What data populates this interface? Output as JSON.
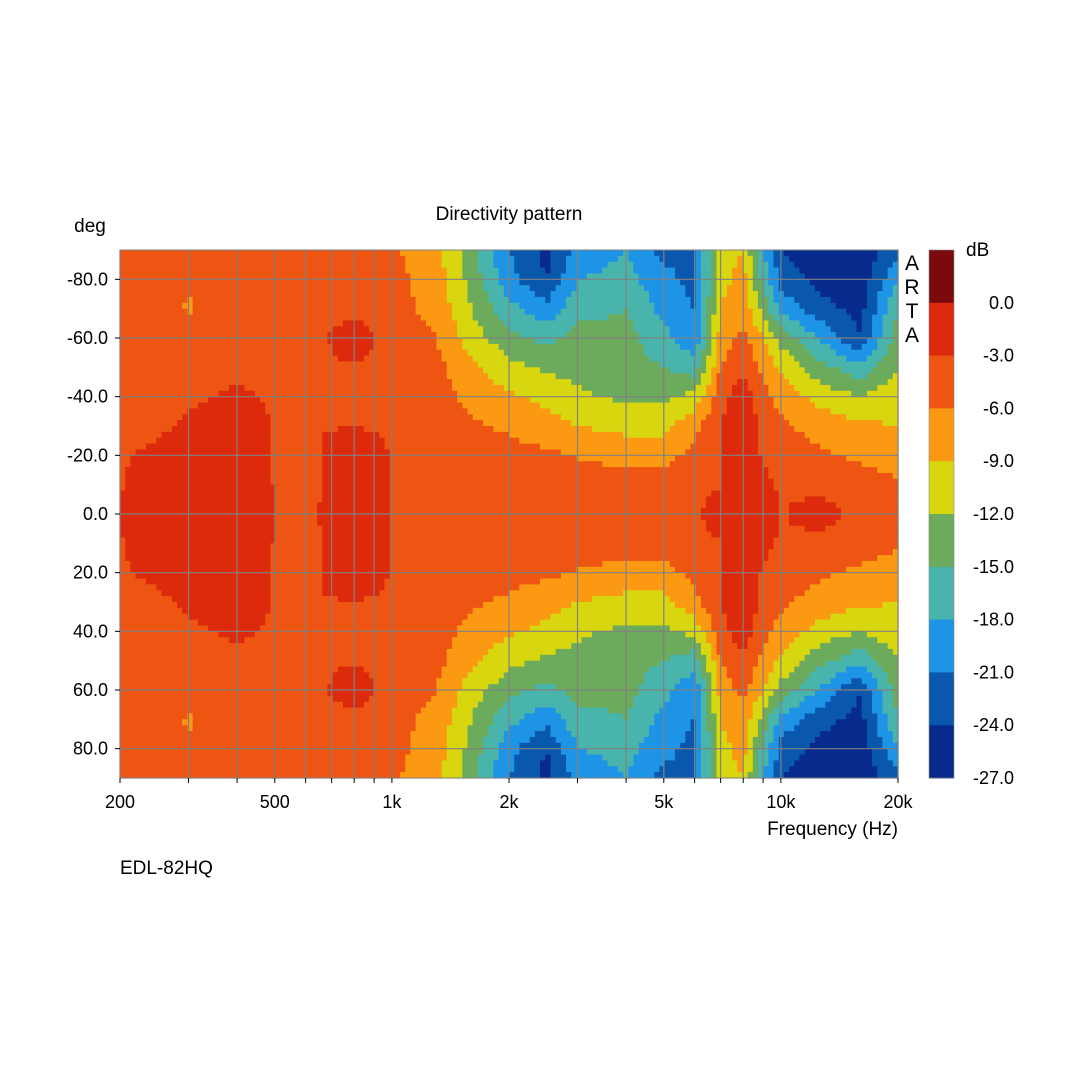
{
  "chart_data": {
    "type": "heatmap",
    "title": "Directivity pattern",
    "xlabel": "Frequency (Hz)",
    "ylabel": "deg",
    "x_scale": "log",
    "xlim": [
      200,
      20000
    ],
    "ylim": [
      -90,
      90
    ],
    "y_inverted": true,
    "x_ticks": [
      200,
      300,
      400,
      500,
      600,
      700,
      800,
      900,
      1000,
      2000,
      3000,
      4000,
      5000,
      6000,
      7000,
      8000,
      9000,
      10000,
      20000
    ],
    "x_tick_labels": [
      {
        "value": 200,
        "label": "200"
      },
      {
        "value": 500,
        "label": "500"
      },
      {
        "value": 1000,
        "label": "1k"
      },
      {
        "value": 2000,
        "label": "2k"
      },
      {
        "value": 5000,
        "label": "5k"
      },
      {
        "value": 10000,
        "label": "10k"
      },
      {
        "value": 20000,
        "label": "20k"
      }
    ],
    "y_ticks": [
      {
        "value": -80,
        "label": "-80.0"
      },
      {
        "value": -60,
        "label": "-60.0"
      },
      {
        "value": -40,
        "label": "-40.0"
      },
      {
        "value": -20,
        "label": "-20.0"
      },
      {
        "value": 0,
        "label": "0.0"
      },
      {
        "value": 20,
        "label": "20.0"
      },
      {
        "value": 40,
        "label": "40.0"
      },
      {
        "value": 60,
        "label": "60.0"
      },
      {
        "value": 80,
        "label": "80.0"
      }
    ],
    "colorbar": {
      "unit": "dB",
      "tick_labels": [
        "0.0",
        "-3.0",
        "-6.0",
        "-9.0",
        "-12.0",
        "-15.0",
        "-18.0",
        "-21.0",
        "-24.0",
        "-27.0"
      ],
      "levels": [
        {
          "min": 0,
          "color": "#7a0a0e"
        },
        {
          "min": -3,
          "color": "#dd2a0c"
        },
        {
          "min": -6,
          "color": "#ee5512"
        },
        {
          "min": -9,
          "color": "#fb9a12"
        },
        {
          "min": -12,
          "color": "#d8d60e"
        },
        {
          "min": -15,
          "color": "#6caa5c"
        },
        {
          "min": -18,
          "color": "#48b4ac"
        },
        {
          "min": -21,
          "color": "#1e94e6"
        },
        {
          "min": -24,
          "color": "#0a58ae"
        },
        {
          "min": -27,
          "color": "#082a8c"
        }
      ]
    },
    "grid": true,
    "grid_color": "#808080",
    "side_label": [
      "A",
      "R",
      "T",
      "A"
    ],
    "footer": "EDL-82HQ",
    "angles": [
      -90,
      -80,
      -70,
      -60,
      -50,
      -40,
      -30,
      -20,
      -10,
      0,
      10,
      20,
      30,
      40,
      50,
      60,
      70,
      80,
      90
    ],
    "frequencies": [
      200,
      250,
      300,
      400,
      500,
      650,
      800,
      1000,
      1300,
      1600,
      2000,
      2500,
      3000,
      4000,
      5000,
      6000,
      7000,
      8000,
      9000,
      10000,
      12500,
      16000,
      20000
    ],
    "spl_db": [
      [
        -4.5,
        -5.2,
        -5.8,
        -5.2,
        -4.5,
        -4.0,
        -4.0,
        -5.5,
        -8.0,
        -14.0,
        -21.0,
        -25.0,
        -20.0,
        -18.0,
        -22.0,
        -22.0,
        -10.0,
        -9.0,
        -18.0,
        -24.0,
        -26.0,
        -26.0,
        -22.0
      ],
      [
        -4.5,
        -5.0,
        -5.8,
        -5.0,
        -4.3,
        -3.8,
        -3.8,
        -5.0,
        -7.5,
        -13.0,
        -20.0,
        -24.0,
        -18.0,
        -17.0,
        -20.0,
        -22.0,
        -10.0,
        -8.0,
        -16.0,
        -22.0,
        -25.0,
        -26.0,
        -18.0
      ],
      [
        -4.5,
        -5.0,
        -6.2,
        -4.8,
        -4.2,
        -3.8,
        -3.8,
        -4.8,
        -7.0,
        -12.0,
        -17.0,
        -20.0,
        -16.0,
        -15.0,
        -19.0,
        -21.0,
        -9.0,
        -7.0,
        -13.0,
        -19.0,
        -23.0,
        -25.0,
        -15.0
      ],
      [
        -4.3,
        -4.8,
        -5.5,
        -4.2,
        -3.8,
        -3.5,
        -1.5,
        -4.2,
        -6.0,
        -10.5,
        -14.0,
        -16.0,
        -14.0,
        -14.0,
        -17.0,
        -20.0,
        -8.0,
        -5.0,
        -9.0,
        -13.0,
        -18.0,
        -24.0,
        -13.0
      ],
      [
        -4.0,
        -4.5,
        -4.5,
        -3.8,
        -3.5,
        -3.3,
        -3.3,
        -3.8,
        -5.0,
        -8.5,
        -11.0,
        -12.5,
        -13.0,
        -14.0,
        -15.0,
        -17.0,
        -6.0,
        -3.5,
        -7.0,
        -9.5,
        -14.0,
        -17.0,
        -12.0
      ],
      [
        -3.8,
        -4.0,
        -3.5,
        -2.5,
        -3.3,
        -3.2,
        -3.2,
        -3.5,
        -4.5,
        -7.0,
        -8.5,
        -10.0,
        -11.5,
        -12.5,
        -12.5,
        -11.0,
        -4.0,
        -1.0,
        -5.0,
        -7.0,
        -10.0,
        -12.0,
        -10.0
      ],
      [
        -3.5,
        -3.5,
        -2.5,
        -1.5,
        -3.2,
        -3.1,
        -3.1,
        -3.3,
        -4.0,
        -5.5,
        -6.5,
        -7.5,
        -9.0,
        -10.0,
        -10.0,
        -7.0,
        -3.0,
        -0.5,
        -4.0,
        -5.5,
        -7.0,
        -8.5,
        -9.0
      ],
      [
        -3.3,
        -2.5,
        -1.0,
        -1.2,
        -3.1,
        -3.1,
        -1.0,
        -3.2,
        -3.6,
        -4.2,
        -5.0,
        -5.5,
        -6.2,
        -7.0,
        -7.0,
        -5.0,
        -3.0,
        -0.5,
        -3.5,
        -4.5,
        -5.5,
        -6.5,
        -7.5
      ],
      [
        -3.2,
        -1.0,
        -0.5,
        -1.0,
        -3.1,
        -3.1,
        -0.5,
        -3.1,
        -3.3,
        -3.5,
        -3.8,
        -4.0,
        -4.3,
        -4.8,
        -4.8,
        -4.0,
        -3.5,
        -0.5,
        -2.0,
        -3.5,
        -4.5,
        -4.8,
        -5.5
      ],
      [
        -3.0,
        -0.5,
        -0.3,
        -1.0,
        -3.0,
        -3.0,
        -0.3,
        -3.0,
        -3.2,
        -3.3,
        -3.4,
        -3.5,
        -3.6,
        -3.7,
        -3.8,
        -3.8,
        -0.5,
        -2.0,
        -0.5,
        -3.3,
        -1.0,
        -4.2,
        -4.5
      ],
      [
        -3.2,
        -1.0,
        -0.5,
        -1.0,
        -3.1,
        -3.1,
        -0.5,
        -3.1,
        -3.3,
        -3.5,
        -3.8,
        -4.0,
        -4.3,
        -4.8,
        -4.8,
        -4.0,
        -3.5,
        -0.5,
        -2.0,
        -3.5,
        -4.5,
        -4.8,
        -5.5
      ],
      [
        -3.3,
        -2.5,
        -1.0,
        -1.2,
        -3.1,
        -3.1,
        -1.0,
        -3.2,
        -3.6,
        -4.2,
        -5.0,
        -5.5,
        -6.2,
        -7.0,
        -7.0,
        -5.0,
        -3.0,
        -0.5,
        -3.5,
        -4.5,
        -5.5,
        -6.5,
        -7.5
      ],
      [
        -3.5,
        -3.5,
        -2.5,
        -1.5,
        -3.2,
        -3.1,
        -3.1,
        -3.3,
        -4.0,
        -5.5,
        -6.5,
        -7.5,
        -9.0,
        -10.0,
        -10.0,
        -7.0,
        -3.0,
        -0.5,
        -4.0,
        -5.5,
        -7.0,
        -8.5,
        -9.0
      ],
      [
        -3.8,
        -4.0,
        -3.5,
        -2.5,
        -3.3,
        -3.2,
        -3.2,
        -3.5,
        -4.5,
        -7.0,
        -8.5,
        -10.0,
        -11.5,
        -12.5,
        -12.5,
        -11.0,
        -4.0,
        -1.0,
        -5.0,
        -7.0,
        -10.0,
        -12.0,
        -10.0
      ],
      [
        -4.0,
        -4.5,
        -4.5,
        -3.8,
        -3.5,
        -3.3,
        -3.3,
        -3.8,
        -5.0,
        -8.5,
        -11.0,
        -12.5,
        -13.0,
        -14.0,
        -15.0,
        -17.0,
        -6.0,
        -3.5,
        -7.0,
        -9.5,
        -14.0,
        -17.0,
        -12.0
      ],
      [
        -4.3,
        -4.8,
        -5.5,
        -4.2,
        -3.8,
        -3.5,
        -1.5,
        -4.2,
        -6.0,
        -10.5,
        -14.0,
        -16.0,
        -14.0,
        -14.0,
        -17.0,
        -20.0,
        -8.0,
        -5.0,
        -9.0,
        -13.0,
        -18.0,
        -24.0,
        -13.0
      ],
      [
        -4.5,
        -5.0,
        -6.2,
        -4.8,
        -4.2,
        -3.8,
        -3.8,
        -4.8,
        -7.0,
        -12.0,
        -17.0,
        -20.0,
        -16.0,
        -15.0,
        -19.0,
        -21.0,
        -9.0,
        -7.0,
        -13.0,
        -19.0,
        -23.0,
        -25.0,
        -15.0
      ],
      [
        -4.5,
        -5.0,
        -5.8,
        -5.0,
        -4.3,
        -3.8,
        -3.8,
        -5.0,
        -7.5,
        -13.0,
        -20.0,
        -24.0,
        -18.0,
        -17.0,
        -20.0,
        -22.0,
        -10.0,
        -8.0,
        -16.0,
        -22.0,
        -25.0,
        -26.0,
        -18.0
      ],
      [
        -4.5,
        -5.2,
        -5.8,
        -5.2,
        -4.5,
        -4.0,
        -4.0,
        -5.5,
        -8.0,
        -14.0,
        -21.0,
        -25.0,
        -20.0,
        -18.0,
        -22.0,
        -22.0,
        -10.0,
        -9.0,
        -18.0,
        -24.0,
        -26.0,
        -26.0,
        -22.0
      ]
    ]
  }
}
